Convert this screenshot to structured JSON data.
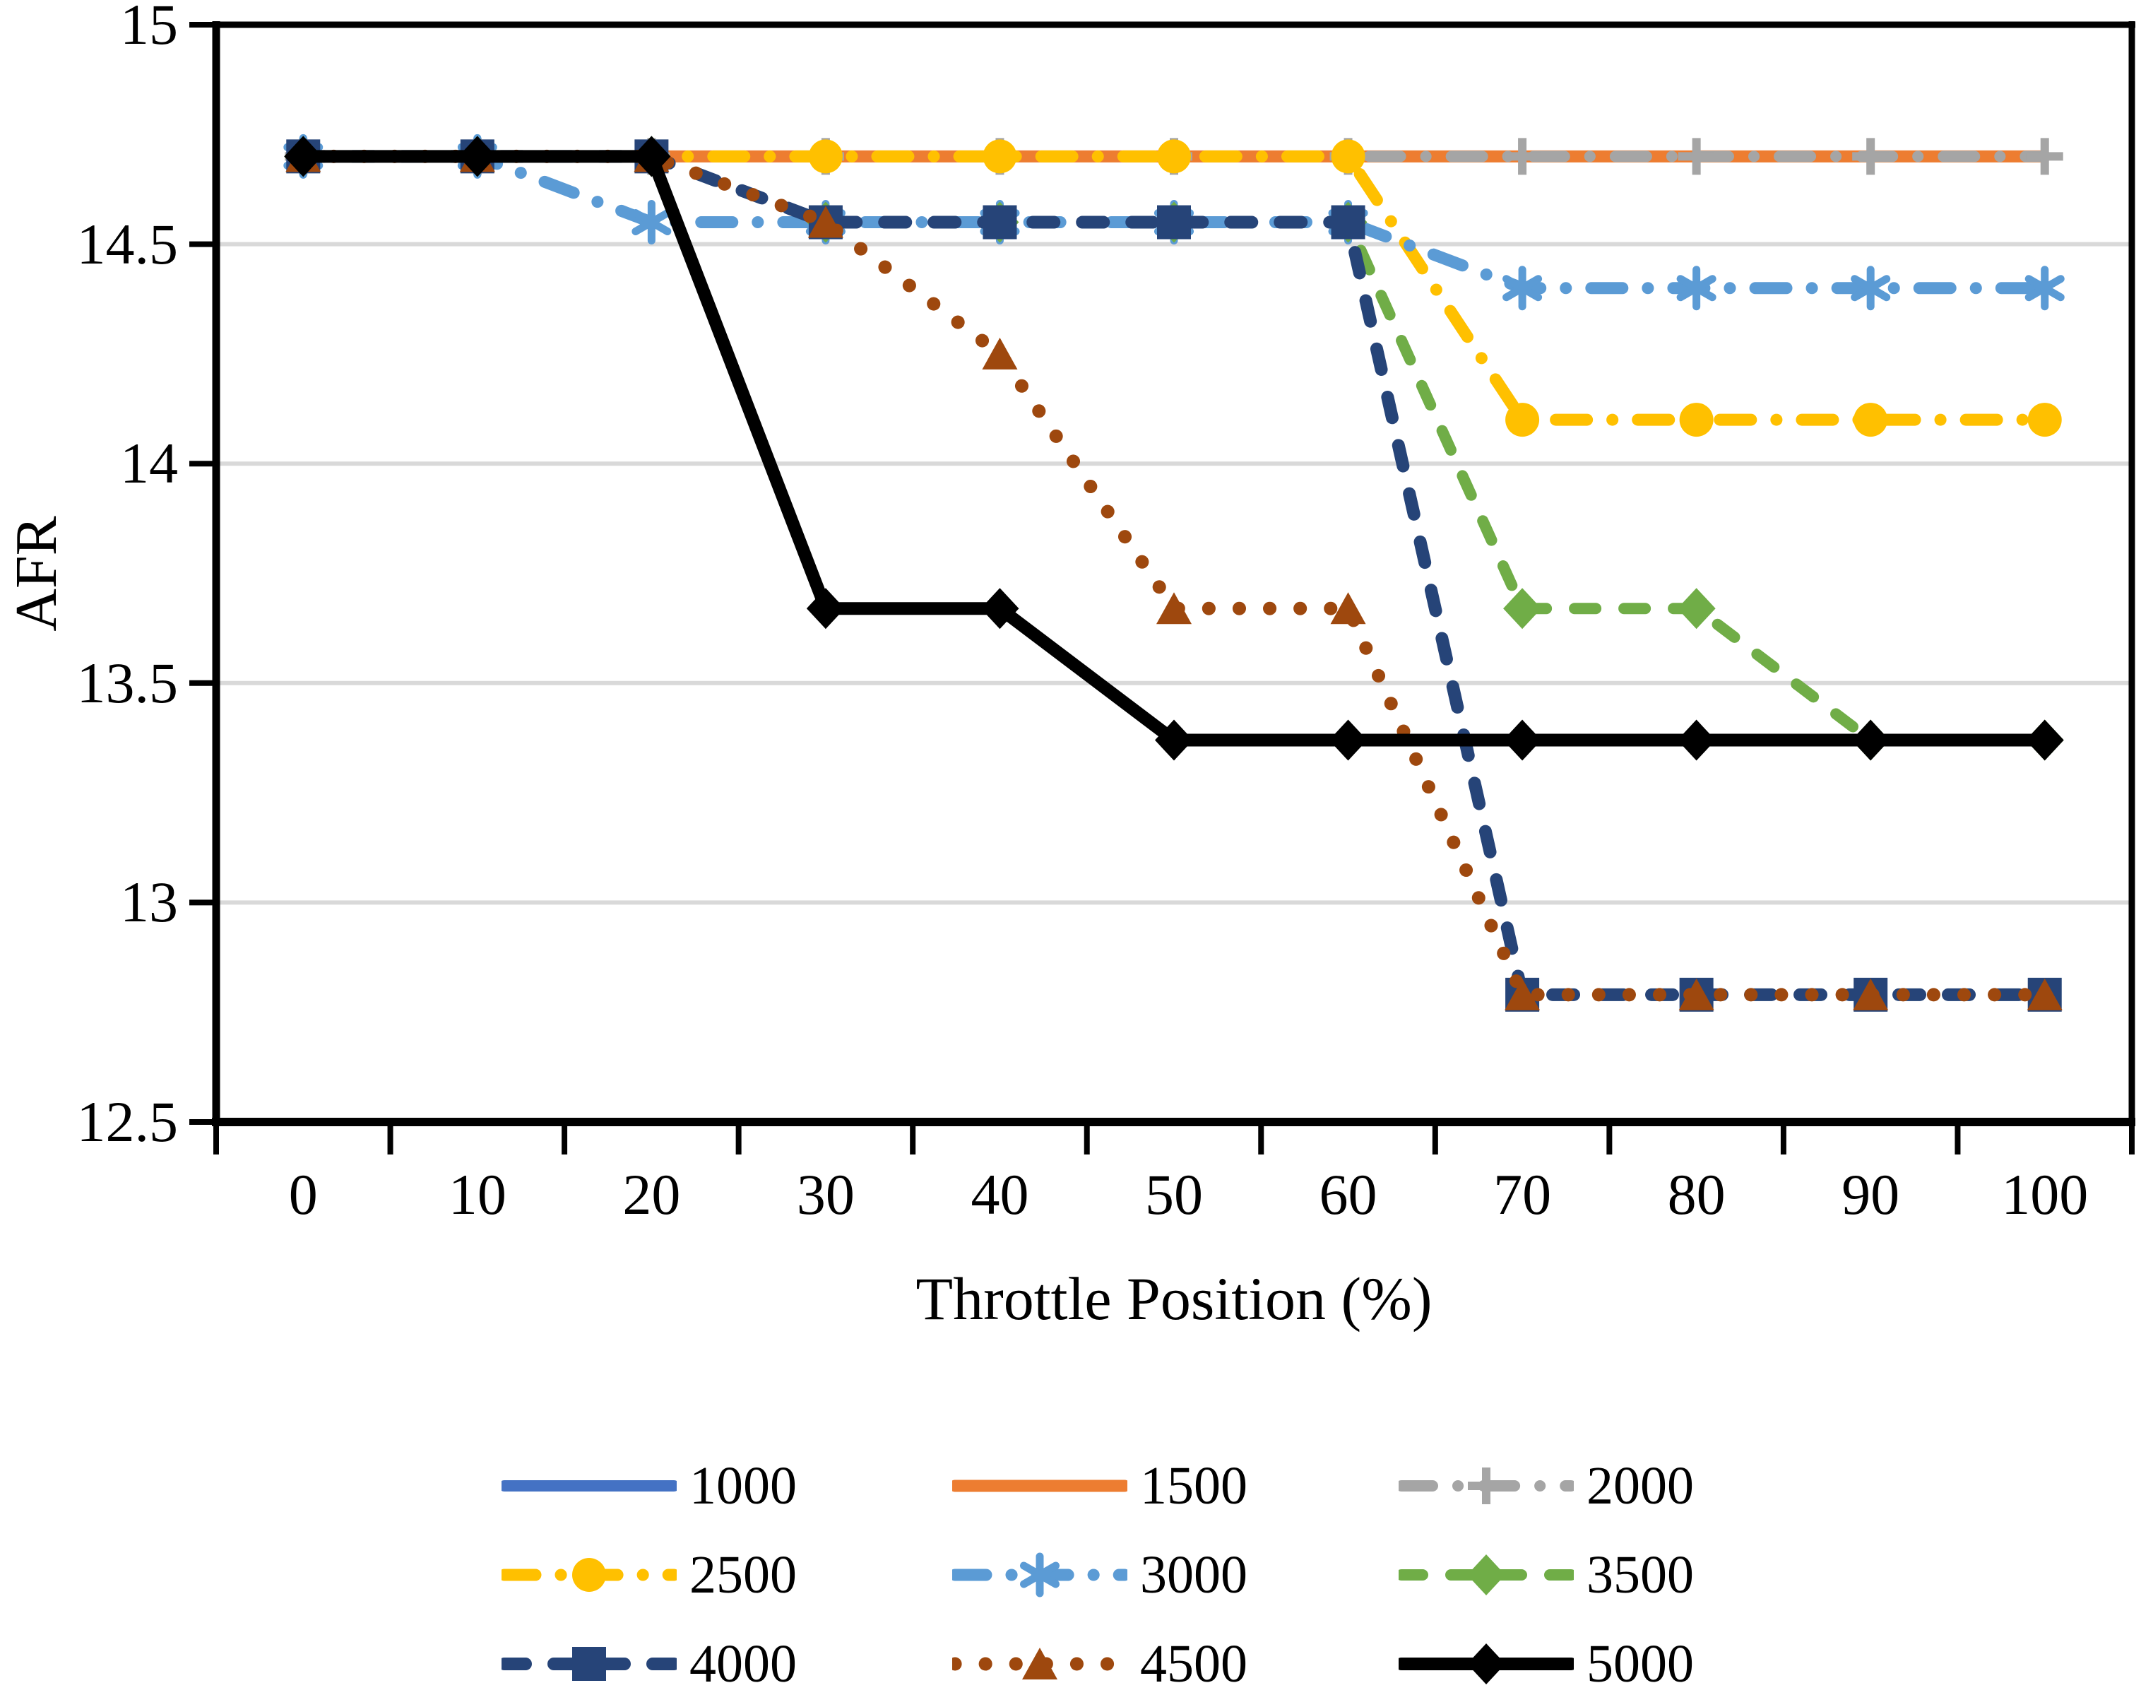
{
  "figure": {
    "background": "#FFFFFF",
    "grid_color": "#D9D9D9",
    "axis_color": "#000000"
  },
  "chart_data": {
    "type": "line",
    "title": "",
    "xlabel": "Throttle Position (%)",
    "ylabel": "AFR",
    "x": [
      0,
      10,
      20,
      30,
      40,
      50,
      60,
      70,
      80,
      90,
      100
    ],
    "x_ticks": [
      "0",
      "10",
      "20",
      "30",
      "40",
      "50",
      "60",
      "70",
      "80",
      "90",
      "100"
    ],
    "y_ticks": [
      "15",
      "14.5",
      "14",
      "13.5",
      "13",
      "12.5"
    ],
    "y_tick_values": [
      15,
      14.5,
      14,
      13.5,
      13,
      12.5
    ],
    "ylim": [
      12.5,
      15
    ],
    "grid_on": true,
    "grid_values": [
      14.5,
      14,
      13.5,
      13
    ],
    "legend_position": "bottom",
    "legend_columns": 3,
    "series": [
      {
        "name": "1000",
        "color": "#4472C4",
        "marker": "none",
        "line": "solid",
        "width": 16,
        "values": [
          14.7,
          14.7,
          14.7,
          14.7,
          14.7,
          14.7,
          14.7,
          14.7,
          14.7,
          14.7,
          14.7
        ]
      },
      {
        "name": "1500",
        "color": "#ED7D31",
        "marker": "none",
        "line": "solid",
        "width": 17,
        "values": [
          14.7,
          14.7,
          14.7,
          14.7,
          14.7,
          14.7,
          14.7,
          14.7,
          14.7,
          14.7,
          14.7
        ]
      },
      {
        "name": "2000",
        "color": "#A5A5A5",
        "marker": "plus",
        "line": "dashdot",
        "width": 16,
        "values": [
          14.7,
          14.7,
          14.7,
          14.7,
          14.7,
          14.7,
          14.7,
          14.7,
          14.7,
          14.7,
          14.7
        ]
      },
      {
        "name": "2500",
        "color": "#FFC000",
        "marker": "circle",
        "line": "dashdot",
        "width": 17,
        "values": [
          14.7,
          14.7,
          14.7,
          14.7,
          14.7,
          14.7,
          14.7,
          14.1,
          14.1,
          14.1,
          14.1
        ]
      },
      {
        "name": "3000",
        "color": "#5B9BD5",
        "marker": "asterisk",
        "line": "dashdot",
        "width": 17,
        "values": [
          14.7,
          14.7,
          14.55,
          14.55,
          14.55,
          14.55,
          14.55,
          14.4,
          14.4,
          14.4,
          14.4
        ]
      },
      {
        "name": "3500",
        "color": "#70AD47",
        "marker": "diamond",
        "line": "dash",
        "width": 16,
        "values": [
          14.7,
          14.7,
          14.7,
          14.55,
          14.55,
          14.55,
          14.55,
          13.67,
          13.67,
          13.37,
          13.37
        ]
      },
      {
        "name": "4000",
        "color": "#264478",
        "marker": "square",
        "line": "dash",
        "width": 18,
        "values": [
          14.7,
          14.7,
          14.7,
          14.55,
          14.55,
          14.55,
          14.55,
          12.79,
          12.79,
          12.79,
          12.79
        ]
      },
      {
        "name": "4500",
        "color": "#9E480E",
        "marker": "triangle",
        "line": "dot",
        "width": 19,
        "values": [
          14.7,
          14.7,
          14.7,
          14.55,
          14.25,
          13.67,
          13.67,
          12.79,
          12.79,
          12.79,
          12.79
        ]
      },
      {
        "name": "5000",
        "color": "#000000",
        "marker": "diamond",
        "line": "solid",
        "width": 18,
        "values": [
          14.7,
          14.7,
          14.7,
          13.67,
          13.67,
          13.37,
          13.37,
          13.37,
          13.37,
          13.37,
          13.37
        ]
      }
    ],
    "legend_entries": [
      "1000",
      "1500",
      "2000",
      "2500",
      "3000",
      "3500",
      "4000",
      "4500",
      "5000"
    ]
  }
}
